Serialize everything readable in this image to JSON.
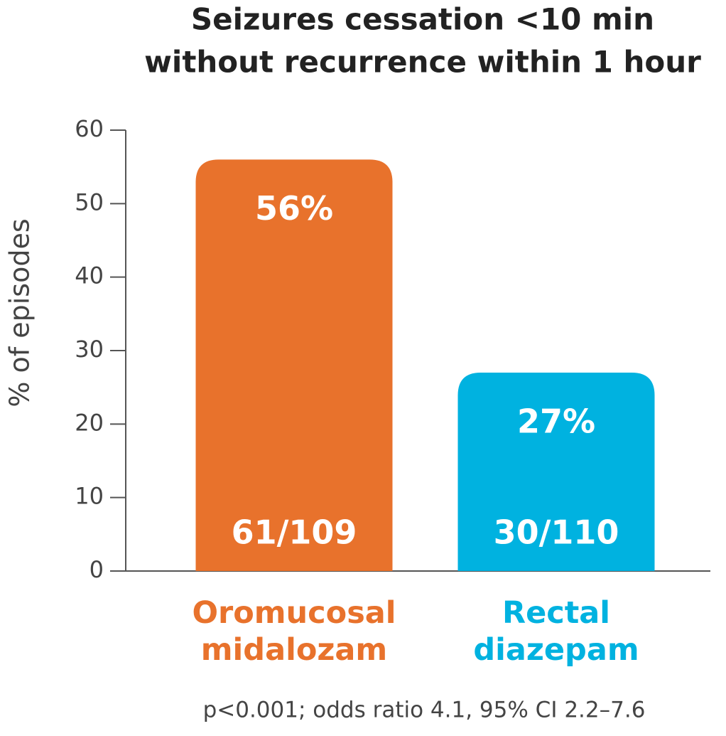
{
  "chart_data": {
    "type": "bar",
    "title": [
      "Seizures cessation <10 min",
      "without recurrence within  1 hour"
    ],
    "y_label": "% of episodes",
    "categories": [
      "Oromucosal midalozam",
      "Rectal diazepam"
    ],
    "values": [
      56,
      27
    ],
    "value_labels": [
      "56%",
      "27%"
    ],
    "bar_annotations": [
      "61/109",
      "30/110"
    ],
    "colors": [
      "#e8722c",
      "#00b2e0"
    ],
    "ylim": [
      0,
      60
    ],
    "yticks": [
      0,
      10,
      20,
      30,
      40,
      50,
      60
    ],
    "footnote": "p<0.001; odds ratio 4.1, 95% CI 2.2–7.6"
  }
}
